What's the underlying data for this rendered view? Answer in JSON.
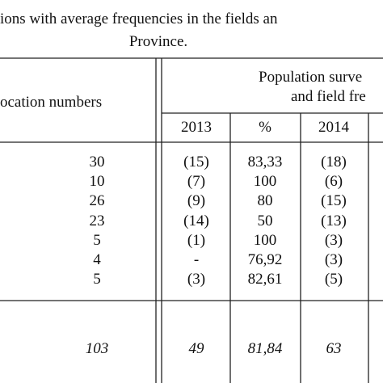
{
  "title": {
    "lines": [
      "ions with average frequencies in the fields an",
      "Province."
    ]
  },
  "table": {
    "header": {
      "location": "ocation numbers",
      "group": [
        "Population surve",
        "and  field fre"
      ],
      "columns": [
        "2013",
        "%",
        "2014"
      ]
    },
    "rows": [
      [
        "30",
        "(15)",
        "83,33",
        "(18)"
      ],
      [
        "10",
        "(7)",
        "100",
        "(6)"
      ],
      [
        "26",
        "(9)",
        "80",
        "(15)"
      ],
      [
        "23",
        "(14)",
        "50",
        "(13)"
      ],
      [
        "5",
        "(1)",
        "100",
        "(3)"
      ],
      [
        "4",
        "-",
        "76,92",
        "(3)"
      ],
      [
        "5",
        "(3)",
        "82,61",
        "(5)"
      ]
    ],
    "total": [
      "103",
      "49",
      "81,84",
      "63"
    ]
  }
}
